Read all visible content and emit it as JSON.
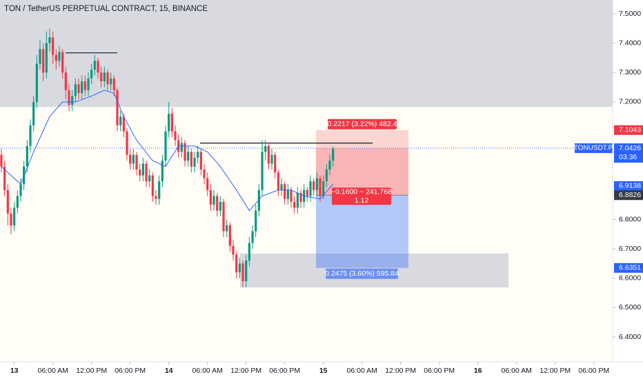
{
  "chart_data": {
    "type": "candlestick",
    "title": "TON / TetherUS PERPETUAL CONTRACT, 15, BINANCE",
    "up_color": "#089981",
    "down_color": "#f23645",
    "ma_color": "#2962ff",
    "ylim": [
      6.3157,
      7.5469
    ],
    "yticks": [
      {
        "value": 7.5,
        "label": "7.5000"
      },
      {
        "value": 7.4,
        "label": "7.4000"
      },
      {
        "value": 7.3,
        "label": "7.3000"
      },
      {
        "value": 7.2,
        "label": "7.2000"
      },
      {
        "value": 6.8,
        "label": "6.8000"
      },
      {
        "value": 6.7,
        "label": "6.7000"
      },
      {
        "value": 6.6,
        "label": "6.6000"
      },
      {
        "value": 6.5,
        "label": "6.5000"
      },
      {
        "value": 6.4,
        "label": "6.4000"
      }
    ],
    "xticks": [
      {
        "value": 4,
        "label": "13"
      },
      {
        "value": 16,
        "label": "06:00 AM"
      },
      {
        "value": 28,
        "label": "12:00 PM"
      },
      {
        "value": 40,
        "label": "06:00 PM"
      },
      {
        "value": 52,
        "label": "14"
      },
      {
        "value": 64,
        "label": "06:00 AM"
      },
      {
        "value": 76,
        "label": "12:00 PM"
      },
      {
        "value": 88,
        "label": "06:00 PM"
      },
      {
        "value": 100,
        "label": "15"
      },
      {
        "value": 112,
        "label": "06:00 AM"
      },
      {
        "value": 124,
        "label": "12:00 PM"
      },
      {
        "value": 136,
        "label": "06:00 PM"
      },
      {
        "value": 148,
        "label": "16"
      },
      {
        "value": 160,
        "label": "06:00 AM"
      },
      {
        "value": 172,
        "label": "12:00 PM"
      },
      {
        "value": 184,
        "label": "06:00 PM"
      }
    ],
    "candles": [
      [
        7.02,
        7.04,
        6.96,
        6.98
      ],
      [
        6.98,
        7.0,
        6.88,
        6.9
      ],
      [
        6.9,
        6.92,
        6.78,
        6.82
      ],
      [
        6.82,
        6.84,
        6.75,
        6.78
      ],
      [
        6.78,
        6.86,
        6.76,
        6.84
      ],
      [
        6.84,
        6.9,
        6.82,
        6.88
      ],
      [
        6.88,
        6.94,
        6.86,
        6.92
      ],
      [
        6.92,
        7.0,
        6.9,
        6.98
      ],
      [
        6.98,
        7.07,
        6.96,
        7.05
      ],
      [
        7.05,
        7.14,
        7.03,
        7.12
      ],
      [
        7.12,
        7.22,
        7.1,
        7.2
      ],
      [
        7.2,
        7.36,
        7.18,
        7.33
      ],
      [
        7.33,
        7.41,
        7.31,
        7.38
      ],
      [
        7.38,
        7.4,
        7.27,
        7.3
      ],
      [
        7.3,
        7.44,
        7.28,
        7.4
      ],
      [
        7.4,
        7.45,
        7.37,
        7.42
      ],
      [
        7.42,
        7.44,
        7.33,
        7.36
      ],
      [
        7.36,
        7.38,
        7.31,
        7.34
      ],
      [
        7.34,
        7.39,
        7.32,
        7.37
      ],
      [
        7.37,
        7.38,
        7.28,
        7.3
      ],
      [
        7.3,
        7.32,
        7.21,
        7.24
      ],
      [
        7.24,
        7.26,
        7.17,
        7.19
      ],
      [
        7.19,
        7.24,
        7.17,
        7.22
      ],
      [
        7.22,
        7.28,
        7.2,
        7.26
      ],
      [
        7.26,
        7.28,
        7.21,
        7.23
      ],
      [
        7.23,
        7.29,
        7.21,
        7.27
      ],
      [
        7.27,
        7.29,
        7.22,
        7.24
      ],
      [
        7.24,
        7.3,
        7.22,
        7.28
      ],
      [
        7.28,
        7.33,
        7.26,
        7.31
      ],
      [
        7.31,
        7.36,
        7.29,
        7.34
      ],
      [
        7.34,
        7.35,
        7.28,
        7.3
      ],
      [
        7.3,
        7.32,
        7.25,
        7.27
      ],
      [
        7.27,
        7.32,
        7.25,
        7.3
      ],
      [
        7.3,
        7.31,
        7.24,
        7.26
      ],
      [
        7.26,
        7.3,
        7.24,
        7.28
      ],
      [
        7.28,
        7.29,
        7.22,
        7.24
      ],
      [
        7.24,
        7.25,
        7.1,
        7.12
      ],
      [
        7.12,
        7.17,
        7.1,
        7.15
      ],
      [
        7.15,
        7.16,
        7.08,
        7.1
      ],
      [
        7.1,
        7.11,
        7.0,
        7.02
      ],
      [
        7.02,
        7.04,
        6.97,
        6.99
      ],
      [
        6.99,
        7.04,
        6.97,
        7.02
      ],
      [
        7.02,
        7.03,
        6.95,
        6.97
      ],
      [
        6.97,
        6.99,
        6.93,
        6.95
      ],
      [
        6.95,
        7.01,
        6.93,
        6.99
      ],
      [
        6.99,
        7.0,
        6.91,
        6.93
      ],
      [
        6.93,
        6.97,
        6.91,
        6.95
      ],
      [
        6.95,
        6.96,
        6.86,
        6.88
      ],
      [
        6.88,
        6.9,
        6.85,
        6.87
      ],
      [
        6.87,
        6.95,
        6.85,
        6.93
      ],
      [
        6.93,
        7.02,
        6.91,
        7.0
      ],
      [
        7.0,
        7.12,
        6.98,
        7.1
      ],
      [
        7.1,
        7.2,
        7.08,
        7.16
      ],
      [
        7.16,
        7.18,
        7.08,
        7.1
      ],
      [
        7.1,
        7.12,
        7.05,
        7.07
      ],
      [
        7.07,
        7.09,
        7.01,
        7.03
      ],
      [
        7.03,
        7.08,
        7.01,
        7.06
      ],
      [
        7.06,
        7.07,
        6.98,
        7.0
      ],
      [
        7.0,
        7.05,
        6.98,
        7.03
      ],
      [
        7.03,
        7.04,
        6.96,
        6.98
      ],
      [
        6.98,
        7.03,
        6.96,
        7.01
      ],
      [
        7.01,
        7.05,
        6.99,
        7.03
      ],
      [
        7.03,
        7.04,
        6.95,
        6.97
      ],
      [
        6.97,
        6.99,
        6.92,
        6.94
      ],
      [
        6.94,
        6.96,
        6.88,
        6.9
      ],
      [
        6.9,
        6.92,
        6.83,
        6.85
      ],
      [
        6.85,
        6.9,
        6.83,
        6.88
      ],
      [
        6.88,
        6.89,
        6.81,
        6.83
      ],
      [
        6.83,
        6.88,
        6.81,
        6.86
      ],
      [
        6.86,
        6.87,
        6.74,
        6.76
      ],
      [
        6.76,
        6.8,
        6.74,
        6.78
      ],
      [
        6.78,
        6.79,
        6.69,
        6.71
      ],
      [
        6.71,
        6.73,
        6.66,
        6.68
      ],
      [
        6.68,
        6.69,
        6.6,
        6.62
      ],
      [
        6.62,
        6.67,
        6.6,
        6.65
      ],
      [
        6.65,
        6.66,
        6.57,
        6.59
      ],
      [
        6.59,
        6.68,
        6.57,
        6.66
      ],
      [
        6.66,
        6.74,
        6.64,
        6.72
      ],
      [
        6.72,
        6.78,
        6.7,
        6.76
      ],
      [
        6.76,
        6.85,
        6.74,
        6.83
      ],
      [
        6.83,
        6.92,
        6.81,
        6.9
      ],
      [
        6.9,
        7.07,
        6.88,
        7.03
      ],
      [
        7.03,
        7.07,
        7.0,
        7.05
      ],
      [
        7.05,
        7.06,
        6.97,
        6.99
      ],
      [
        6.99,
        7.04,
        6.97,
        7.02
      ],
      [
        7.02,
        7.03,
        6.94,
        6.96
      ],
      [
        6.96,
        6.97,
        6.88,
        6.9
      ],
      [
        6.9,
        6.94,
        6.88,
        6.92
      ],
      [
        6.92,
        6.93,
        6.85,
        6.87
      ],
      [
        6.87,
        6.92,
        6.85,
        6.9
      ],
      [
        6.9,
        6.91,
        6.84,
        6.86
      ],
      [
        6.86,
        6.88,
        6.82,
        6.84
      ],
      [
        6.84,
        6.91,
        6.82,
        6.89
      ],
      [
        6.89,
        6.9,
        6.84,
        6.86
      ],
      [
        6.86,
        6.92,
        6.84,
        6.9
      ],
      [
        6.9,
        6.91,
        6.86,
        6.88
      ],
      [
        6.88,
        6.95,
        6.86,
        6.93
      ],
      [
        6.93,
        6.94,
        6.88,
        6.9
      ],
      [
        6.9,
        6.96,
        6.88,
        6.94
      ],
      [
        6.94,
        6.95,
        6.86,
        6.88
      ],
      [
        6.88,
        6.95,
        6.87,
        6.93
      ],
      [
        6.93,
        6.99,
        6.91,
        6.97
      ],
      [
        6.97,
        7.02,
        6.95,
        7.0
      ],
      [
        7.0,
        7.05,
        6.98,
        7.04
      ]
    ],
    "ma": {
      "x": [
        0,
        6,
        10,
        15,
        19,
        23,
        28,
        32,
        35,
        38,
        42,
        47,
        51,
        55,
        60,
        64,
        68,
        73,
        77,
        81,
        86,
        90,
        94,
        99,
        103
      ],
      "values": [
        6.98,
        6.92,
        7.03,
        7.15,
        7.2,
        7.2,
        7.22,
        7.24,
        7.23,
        7.15,
        7.07,
        7.0,
        6.98,
        7.05,
        7.05,
        7.03,
        6.98,
        6.9,
        6.83,
        6.88,
        6.9,
        6.9,
        6.88,
        6.87,
        6.92
      ]
    },
    "zones": [
      {
        "top": 7.5469,
        "bottom": 7.183
      },
      {
        "top": 6.684,
        "bottom": 6.569
      }
    ],
    "levels": [
      7.367,
      7.06
    ],
    "position": {
      "stop": 7.1043,
      "entry": 6.8826,
      "target": 6.6351,
      "stop_label": "0.2217 (3.22%) 482.4",
      "open_label": "−0.1600 ~ 241.768",
      "open_label_2": "1.12",
      "target_label": "0.2475 (3.60%) 595.84"
    },
    "symbol": "TONUSDT.P",
    "countdown": "03:36",
    "last_price": 7.0426,
    "price_labels": [
      {
        "value": 7.1043,
        "color": "#f23645"
      },
      {
        "value": 6.9138,
        "color": "#2962ff"
      },
      {
        "value": 6.8826,
        "color": "#363a45"
      },
      {
        "value": 6.6351,
        "color": "#2962ff"
      }
    ]
  }
}
